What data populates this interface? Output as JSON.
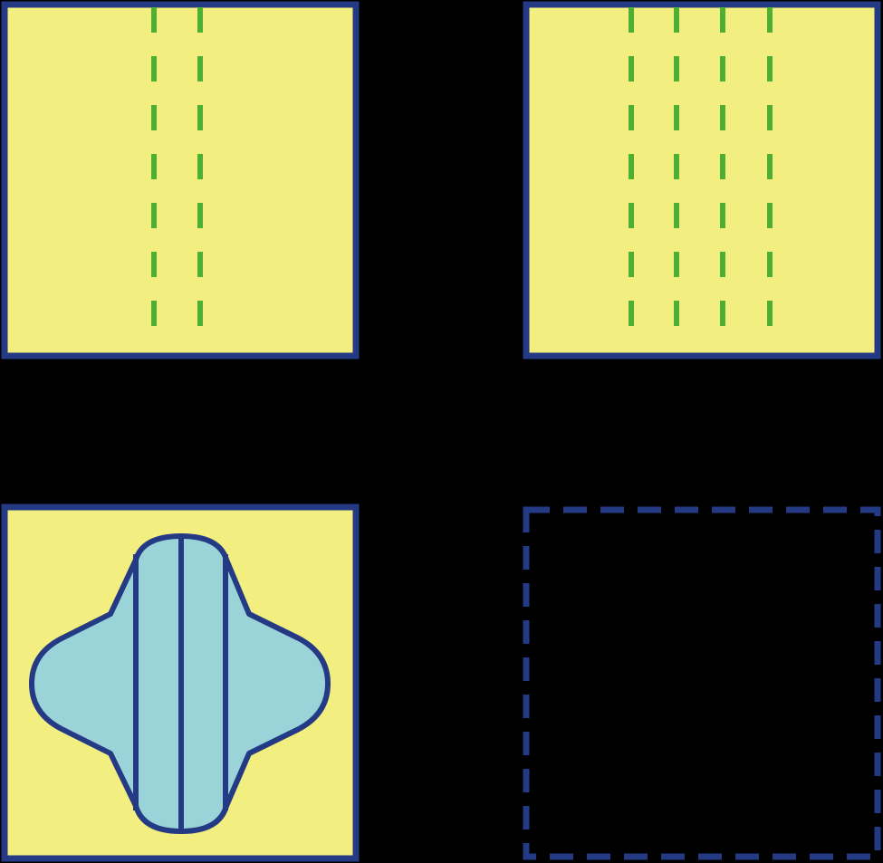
{
  "puzzle": {
    "colors": {
      "background": "#000000",
      "panel_fill": "#F2EE80",
      "panel_border": "#253A85",
      "fold_line": "#4DAF33",
      "cut_shape_fill": "#9AD4D8"
    },
    "panels": [
      {
        "id": "top-left",
        "role": "step",
        "fold_lines": 2
      },
      {
        "id": "top-right",
        "role": "step",
        "fold_lines": 4
      },
      {
        "id": "bottom-left",
        "role": "step",
        "content": "cut-shape-with-3-vertical-lines"
      },
      {
        "id": "bottom-right",
        "role": "answer-placeholder",
        "content": "empty"
      }
    ]
  }
}
